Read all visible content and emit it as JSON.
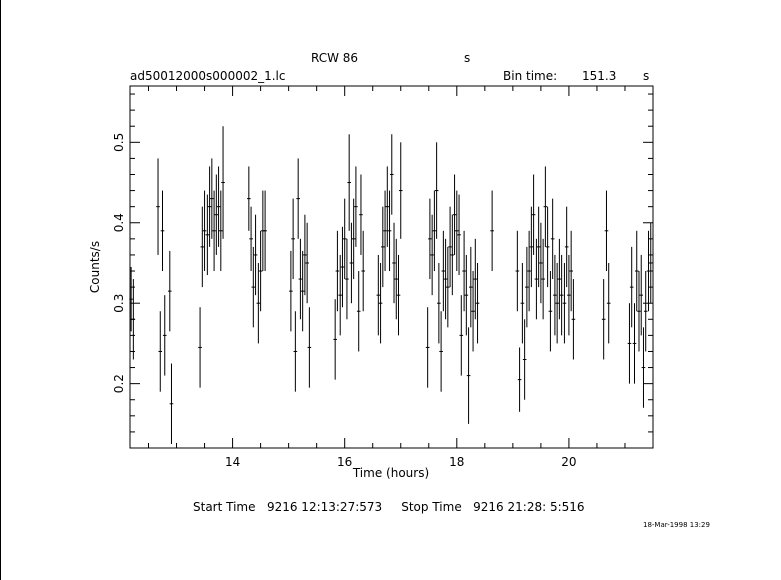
{
  "header": {
    "object": "RCW 86",
    "object_unit": "s",
    "filename": "ad50012000s000002_1.lc",
    "bin_label": "Bin time:",
    "bin_value": "151.3",
    "bin_unit": "s"
  },
  "footer": {
    "start_label": "Start Time",
    "start_value": "9216 12:13:27:573",
    "stop_label": "Stop Time",
    "stop_value": "9216 21:28: 5:516"
  },
  "stamp": "18-Mar-1998 13:29",
  "chart_data": {
    "type": "scatter",
    "title": "RCW 86",
    "xlabel": "Time (hours)",
    "ylabel": "Counts/s",
    "xlim": [
      12.17,
      21.5
    ],
    "ylim": [
      0.12,
      0.57
    ],
    "xticks": [
      14,
      16,
      18,
      20
    ],
    "xtick_labels": [
      "14",
      "16",
      "18",
      "20"
    ],
    "yticks": [
      0.2,
      0.3,
      0.4,
      0.5
    ],
    "ytick_labels": [
      "0.2",
      "0.3",
      "0.4",
      "0.5"
    ],
    "error_bars": true,
    "points": [
      [
        12.19,
        0.305,
        0.04
      ],
      [
        12.23,
        0.28,
        0.05
      ],
      [
        12.67,
        0.42,
        0.06
      ],
      [
        12.71,
        0.24,
        0.05
      ],
      [
        12.75,
        0.39,
        0.05
      ],
      [
        12.79,
        0.26,
        0.05
      ],
      [
        12.88,
        0.315,
        0.05
      ],
      [
        12.91,
        0.175,
        0.05
      ],
      [
        13.42,
        0.245,
        0.05
      ],
      [
        13.46,
        0.37,
        0.05
      ],
      [
        13.5,
        0.39,
        0.05
      ],
      [
        13.55,
        0.385,
        0.05
      ],
      [
        13.59,
        0.42,
        0.05
      ],
      [
        13.63,
        0.43,
        0.05
      ],
      [
        13.67,
        0.39,
        0.05
      ],
      [
        13.71,
        0.41,
        0.05
      ],
      [
        13.75,
        0.42,
        0.05
      ],
      [
        13.79,
        0.39,
        0.05
      ],
      [
        13.83,
        0.45,
        0.07
      ],
      [
        14.29,
        0.43,
        0.04
      ],
      [
        14.33,
        0.38,
        0.04
      ],
      [
        14.37,
        0.32,
        0.05
      ],
      [
        14.41,
        0.36,
        0.05
      ],
      [
        14.46,
        0.3,
        0.05
      ],
      [
        14.5,
        0.34,
        0.05
      ],
      [
        14.54,
        0.39,
        0.05
      ],
      [
        14.58,
        0.39,
        0.05
      ],
      [
        15.04,
        0.315,
        0.05
      ],
      [
        15.08,
        0.38,
        0.05
      ],
      [
        15.12,
        0.24,
        0.05
      ],
      [
        15.17,
        0.43,
        0.05
      ],
      [
        15.21,
        0.33,
        0.05
      ],
      [
        15.25,
        0.315,
        0.05
      ],
      [
        15.29,
        0.36,
        0.05
      ],
      [
        15.33,
        0.35,
        0.05
      ],
      [
        15.37,
        0.245,
        0.05
      ],
      [
        15.83,
        0.255,
        0.05
      ],
      [
        15.87,
        0.34,
        0.05
      ],
      [
        15.92,
        0.31,
        0.05
      ],
      [
        15.96,
        0.345,
        0.05
      ],
      [
        16.0,
        0.38,
        0.05
      ],
      [
        16.04,
        0.33,
        0.05
      ],
      [
        16.08,
        0.45,
        0.06
      ],
      [
        16.12,
        0.35,
        0.05
      ],
      [
        16.16,
        0.38,
        0.05
      ],
      [
        16.2,
        0.42,
        0.05
      ],
      [
        16.25,
        0.29,
        0.05
      ],
      [
        16.29,
        0.41,
        0.05
      ],
      [
        16.33,
        0.34,
        0.05
      ],
      [
        16.6,
        0.31,
        0.05
      ],
      [
        16.64,
        0.3,
        0.05
      ],
      [
        16.68,
        0.37,
        0.05
      ],
      [
        16.72,
        0.39,
        0.05
      ],
      [
        16.76,
        0.42,
        0.05
      ],
      [
        16.8,
        0.39,
        0.05
      ],
      [
        16.84,
        0.46,
        0.05
      ],
      [
        16.88,
        0.35,
        0.05
      ],
      [
        16.92,
        0.33,
        0.05
      ],
      [
        16.96,
        0.31,
        0.05
      ],
      [
        17.0,
        0.44,
        0.06
      ],
      [
        17.48,
        0.245,
        0.05
      ],
      [
        17.52,
        0.38,
        0.05
      ],
      [
        17.56,
        0.36,
        0.05
      ],
      [
        17.6,
        0.39,
        0.05
      ],
      [
        17.64,
        0.44,
        0.06
      ],
      [
        17.68,
        0.3,
        0.05
      ],
      [
        17.72,
        0.24,
        0.05
      ],
      [
        17.76,
        0.34,
        0.05
      ],
      [
        17.8,
        0.33,
        0.05
      ],
      [
        17.84,
        0.32,
        0.05
      ],
      [
        17.88,
        0.37,
        0.05
      ],
      [
        17.92,
        0.36,
        0.05
      ],
      [
        17.96,
        0.41,
        0.05
      ],
      [
        18.0,
        0.39,
        0.05
      ],
      [
        18.04,
        0.385,
        0.05
      ],
      [
        18.08,
        0.26,
        0.05
      ],
      [
        18.13,
        0.34,
        0.05
      ],
      [
        18.17,
        0.31,
        0.05
      ],
      [
        18.21,
        0.21,
        0.06
      ],
      [
        18.25,
        0.32,
        0.05
      ],
      [
        18.29,
        0.29,
        0.05
      ],
      [
        18.33,
        0.33,
        0.05
      ],
      [
        18.37,
        0.3,
        0.05
      ],
      [
        18.63,
        0.39,
        0.05
      ],
      [
        19.08,
        0.34,
        0.05
      ],
      [
        19.12,
        0.205,
        0.04
      ],
      [
        19.17,
        0.3,
        0.05
      ],
      [
        19.21,
        0.23,
        0.05
      ],
      [
        19.25,
        0.32,
        0.05
      ],
      [
        19.29,
        0.34,
        0.05
      ],
      [
        19.33,
        0.37,
        0.05
      ],
      [
        19.37,
        0.41,
        0.05
      ],
      [
        19.42,
        0.33,
        0.05
      ],
      [
        19.46,
        0.37,
        0.05
      ],
      [
        19.5,
        0.35,
        0.05
      ],
      [
        19.54,
        0.33,
        0.05
      ],
      [
        19.58,
        0.42,
        0.05
      ],
      [
        19.62,
        0.37,
        0.05
      ],
      [
        19.67,
        0.29,
        0.05
      ],
      [
        19.71,
        0.38,
        0.05
      ],
      [
        19.75,
        0.31,
        0.05
      ],
      [
        19.79,
        0.3,
        0.05
      ],
      [
        19.83,
        0.33,
        0.05
      ],
      [
        19.87,
        0.31,
        0.05
      ],
      [
        19.92,
        0.3,
        0.05
      ],
      [
        19.96,
        0.37,
        0.05
      ],
      [
        20.0,
        0.31,
        0.05
      ],
      [
        20.04,
        0.34,
        0.05
      ],
      [
        20.08,
        0.28,
        0.05
      ],
      [
        20.62,
        0.28,
        0.05
      ],
      [
        20.67,
        0.39,
        0.05
      ],
      [
        20.71,
        0.3,
        0.05
      ],
      [
        21.08,
        0.25,
        0.05
      ],
      [
        21.12,
        0.32,
        0.05
      ],
      [
        21.17,
        0.25,
        0.05
      ],
      [
        21.21,
        0.34,
        0.05
      ],
      [
        21.25,
        0.29,
        0.05
      ],
      [
        21.29,
        0.31,
        0.05
      ],
      [
        21.33,
        0.22,
        0.05
      ],
      [
        21.37,
        0.29,
        0.05
      ],
      [
        21.42,
        0.34,
        0.05
      ],
      [
        21.46,
        0.35,
        0.05
      ]
    ]
  }
}
